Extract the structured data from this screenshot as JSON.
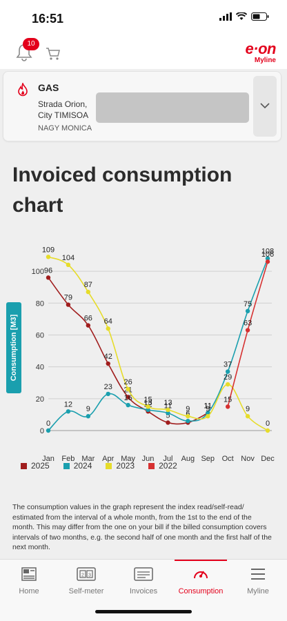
{
  "status": {
    "time": "16:51"
  },
  "header": {
    "notification_count": "10",
    "logo_text": "e·on",
    "logo_sub": "Myline"
  },
  "account": {
    "type": "GAS",
    "street": "Strada Orion,",
    "city": "City TIMISOA",
    "owner": "NAGY MONICA"
  },
  "page": {
    "title": "Invoiced consumption chart"
  },
  "legend": [
    {
      "label": "2025",
      "color": "#a01d1d"
    },
    {
      "label": "2024",
      "color": "#1a9fae"
    },
    {
      "label": "2023",
      "color": "#e6dc2a"
    },
    {
      "label": "2022",
      "color": "#d63030"
    }
  ],
  "note": "The consumption values in the graph represent the index read/self-read/ estimated from the interval of a whole month, from the 1st to the end of the month. This may differ from the one on your bill if the billed consumption covers intervals of two months, e.g. the second half of one month and the first half of the next month.",
  "chart_data": {
    "type": "line",
    "categories": [
      "Jan",
      "Feb",
      "Mar",
      "Apr",
      "May",
      "Jun",
      "Jul",
      "Aug",
      "Sep",
      "Oct",
      "Nov",
      "Dec"
    ],
    "ylabel": "Consumption [M3]",
    "ylim": [
      0,
      110
    ],
    "yticks": [
      0,
      20,
      40,
      60,
      80,
      100
    ],
    "series": [
      {
        "name": "2025",
        "color": "#a01d1d",
        "values": [
          96,
          79,
          66,
          42,
          21,
          12,
          5,
          5,
          11,
          null,
          null,
          null
        ]
      },
      {
        "name": "2024",
        "color": "#1a9fae",
        "values": [
          0,
          12,
          9,
          23,
          16,
          13,
          11,
          6,
          11,
          37,
          75,
          108
        ]
      },
      {
        "name": "2023",
        "color": "#e6dc2a",
        "values": [
          109,
          104,
          87,
          64,
          26,
          15,
          13,
          9,
          9,
          29,
          9,
          0
        ]
      },
      {
        "name": "2022",
        "color": "#d63030",
        "values": [
          null,
          null,
          null,
          null,
          null,
          null,
          null,
          null,
          null,
          15,
          63,
          106
        ]
      }
    ]
  },
  "tabs": [
    {
      "label": "Home",
      "icon": "home-icon"
    },
    {
      "label": "Self-meter",
      "icon": "meter-icon"
    },
    {
      "label": "Invoices",
      "icon": "invoice-icon"
    },
    {
      "label": "Consumption",
      "icon": "gauge-icon"
    },
    {
      "label": "Myline",
      "icon": "menu-icon"
    }
  ]
}
